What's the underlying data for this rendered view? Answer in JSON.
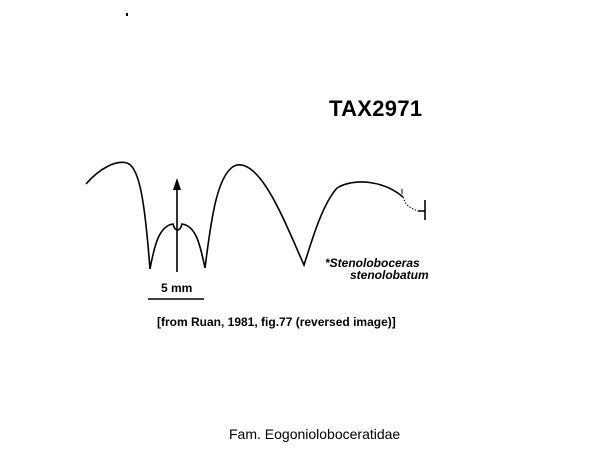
{
  "specimen_code": "TAX2971",
  "taxon": {
    "line1": "*Stenoloboceras",
    "line2": "stenolobatum"
  },
  "scale": {
    "label": "5 mm"
  },
  "source": "[from Ruan, 1981, fig.77 (reversed image)]",
  "family": "Fam. Eogonioloboceratidae",
  "colors": {
    "ink": "#000000",
    "background": "#ffffff"
  }
}
